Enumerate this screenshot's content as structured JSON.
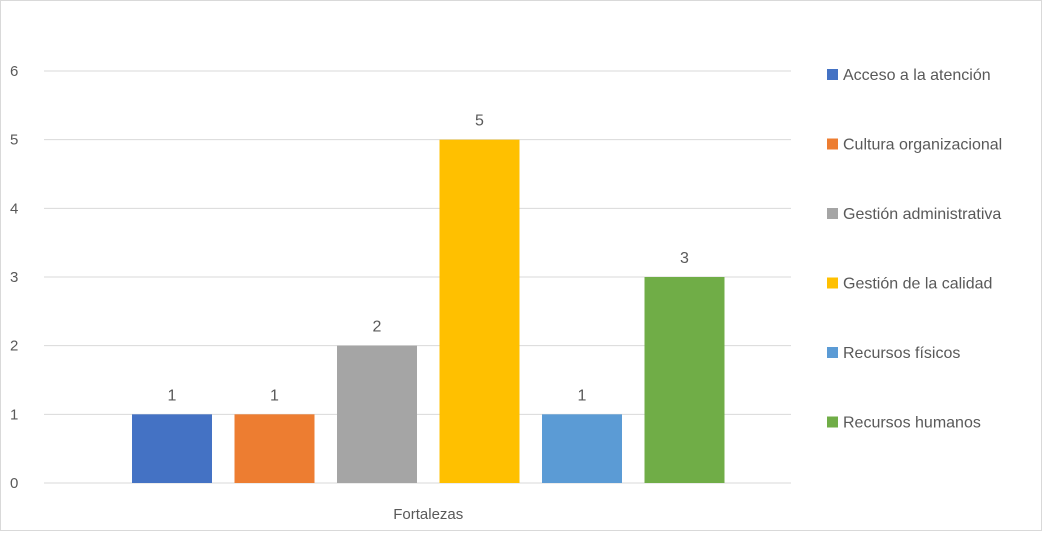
{
  "chart_data": {
    "type": "bar",
    "categories": [
      "Fortalezas"
    ],
    "series": [
      {
        "name": "Acceso a la atención",
        "values": [
          1
        ],
        "color": "#4472C4"
      },
      {
        "name": "Cultura organizacional",
        "values": [
          1
        ],
        "color": "#ED7D31"
      },
      {
        "name": "Gestión administrativa",
        "values": [
          2
        ],
        "color": "#A5A5A5"
      },
      {
        "name": "Gestión de la calidad",
        "values": [
          5
        ],
        "color": "#FFC000"
      },
      {
        "name": "Recursos físicos",
        "values": [
          1
        ],
        "color": "#5B9BD5"
      },
      {
        "name": "Recursos humanos",
        "values": [
          3
        ],
        "color": "#70AD47"
      }
    ],
    "y_ticks": [
      "0",
      "1",
      "2",
      "3",
      "4",
      "5",
      "6"
    ],
    "ylim": [
      0,
      6
    ],
    "grid": true,
    "data_labels": true,
    "legend_position": "right",
    "title": "",
    "xlabel": "",
    "ylabel": ""
  }
}
